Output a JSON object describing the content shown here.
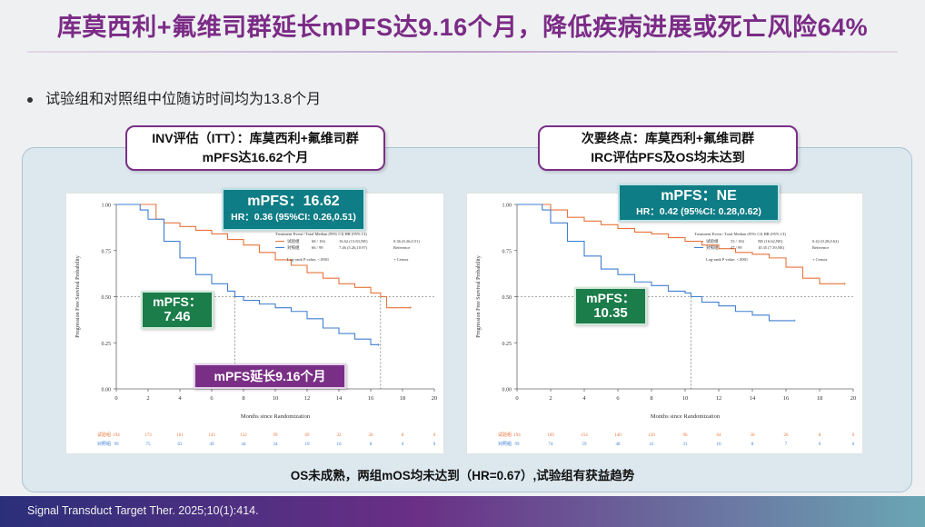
{
  "slide": {
    "title": "库莫西利+氟维司群延长mPFS达9.16个月，降低疾病进展或死亡风险64%",
    "bullet": "试验组和对照组中位随访时间均为13.8个月",
    "bottom_note": "OS未成熟，两组mOS均未达到（HR=0.67）,试验组有获益趋势",
    "footer": "Signal Transduct Target Ther. 2025;10(1):414."
  },
  "left": {
    "header_line1": "INV评估（ITT）：库莫西利+氟维司群",
    "header_line2": "mPFS达16.62个月",
    "callout_exp_big": "mPFS：16.62",
    "callout_exp_small": "HR：0.36 (95%CI: 0.26,0.51)",
    "callout_ctrl_label": "mPFS：",
    "callout_ctrl_value": "7.46",
    "callout_gain": "mPFS延长9.16个月"
  },
  "right": {
    "header_line1": "次要终点：库莫西利+氟维司群",
    "header_line2": "IRC评估PFS及OS均未达到",
    "callout_exp_big": "mPFS：NE",
    "callout_exp_small": "HR：0.42 (95%CI: 0.28,0.62)",
    "callout_ctrl_label": "mPFS：",
    "callout_ctrl_value": "10.35"
  },
  "colors": {
    "experimental": "#e8743b",
    "control": "#3f7fd1"
  },
  "chart_data": [
    {
      "type": "line",
      "xlabel": "Months since Randomization",
      "ylabel": "Progression Free Survival Probability",
      "xlim": [
        0,
        20
      ],
      "ylim": [
        0,
        1
      ],
      "x_ticks": [
        0,
        2,
        4,
        6,
        8,
        10,
        12,
        14,
        16,
        18,
        20
      ],
      "y_ticks": [
        "0.00",
        "0.25",
        "0.50",
        "0.75",
        "1.00"
      ],
      "legend_header": "Treatment  Event / Total Median (95% CI)  HR (95% CI)",
      "legend_rows": [
        {
          "name": "试验组",
          "events": "68 / 194",
          "median": "16.62 (13.83,NE)",
          "hr": "0.36 (0.26,0.51)"
        },
        {
          "name": "对照组",
          "events": "66 / 99",
          "median": "7.46 (5.26,10.97)",
          "hr": "Reference"
        }
      ],
      "logrank": "Log-rank P value: <.0001",
      "censor_label": "Censor",
      "risk_table": {
        "rows": [
          {
            "name": "试验组",
            "values": [
              194,
              173,
              161,
              143,
              132,
              99,
              69,
              32,
              26,
              8,
              0
            ]
          },
          {
            "name": "对照组",
            "values": [
              99,
              75,
              63,
              49,
              44,
              34,
              19,
              16,
              8,
              0,
              0
            ]
          }
        ]
      },
      "series": [
        {
          "name": "试验组",
          "x": [
            0,
            2.5,
            3,
            4,
            5,
            6,
            7,
            8,
            9,
            10,
            11,
            12,
            13,
            14,
            15,
            16,
            16.62,
            17,
            18,
            18.5
          ],
          "y": [
            1,
            0.92,
            0.9,
            0.88,
            0.86,
            0.84,
            0.81,
            0.78,
            0.74,
            0.7,
            0.67,
            0.63,
            0.6,
            0.57,
            0.55,
            0.52,
            0.5,
            0.44,
            0.44,
            0.44
          ]
        },
        {
          "name": "对照组",
          "x": [
            0,
            1.5,
            2,
            3,
            4,
            5,
            6,
            7,
            7.46,
            8,
            9,
            10,
            11,
            12,
            13,
            14,
            15,
            16,
            16.5
          ],
          "y": [
            1,
            0.97,
            0.92,
            0.8,
            0.71,
            0.62,
            0.57,
            0.53,
            0.5,
            0.48,
            0.46,
            0.44,
            0.42,
            0.38,
            0.33,
            0.3,
            0.27,
            0.24,
            0.24
          ]
        }
      ]
    },
    {
      "type": "line",
      "xlabel": "Months since Randomization",
      "ylabel": "Progression Free Survival Probability",
      "xlim": [
        0,
        20
      ],
      "ylim": [
        0,
        1
      ],
      "x_ticks": [
        0,
        2,
        4,
        6,
        8,
        10,
        12,
        14,
        16,
        18,
        20
      ],
      "y_ticks": [
        "0.00",
        "0.25",
        "0.50",
        "0.75",
        "1.00"
      ],
      "legend_header": "Treatment  Event / Total Median (95% CI)  HR (95% CI)",
      "legend_rows": [
        {
          "name": "试验组",
          "events": "53 / 194",
          "median": "NE (16.62,NE)",
          "hr": "0.42 (0.28,0.62)"
        },
        {
          "name": "对照组",
          "events": "47 / 99",
          "median": "10.35 (7.39,NE)",
          "hr": "Reference"
        }
      ],
      "logrank": "Log-rank P value: <.0001",
      "censor_label": "Censor",
      "risk_table": {
        "rows": [
          {
            "name": "试验组",
            "values": [
              194,
              169,
              154,
              140,
              120,
              96,
              64,
              30,
              26,
              8,
              0
            ]
          },
          {
            "name": "对照组",
            "values": [
              99,
              74,
              59,
              48,
              41,
              31,
              16,
              8,
              7,
              0,
              0
            ]
          }
        ]
      },
      "series": [
        {
          "name": "试验组",
          "x": [
            0,
            2,
            3,
            4,
            5,
            6,
            7,
            8,
            9,
            10,
            11,
            12,
            13,
            14,
            15,
            16,
            17,
            18,
            19.5
          ],
          "y": [
            1,
            0.97,
            0.93,
            0.91,
            0.89,
            0.87,
            0.85,
            0.84,
            0.82,
            0.8,
            0.78,
            0.76,
            0.74,
            0.73,
            0.71,
            0.66,
            0.6,
            0.57,
            0.57
          ]
        },
        {
          "name": "对照组",
          "x": [
            0,
            1.5,
            2,
            3,
            4,
            5,
            6,
            7,
            8,
            9,
            10,
            10.35,
            11,
            12,
            13,
            14,
            15,
            16,
            16.5
          ],
          "y": [
            1,
            0.97,
            0.9,
            0.8,
            0.72,
            0.65,
            0.62,
            0.58,
            0.56,
            0.53,
            0.52,
            0.5,
            0.47,
            0.45,
            0.42,
            0.4,
            0.37,
            0.37,
            0.37
          ]
        }
      ]
    }
  ]
}
